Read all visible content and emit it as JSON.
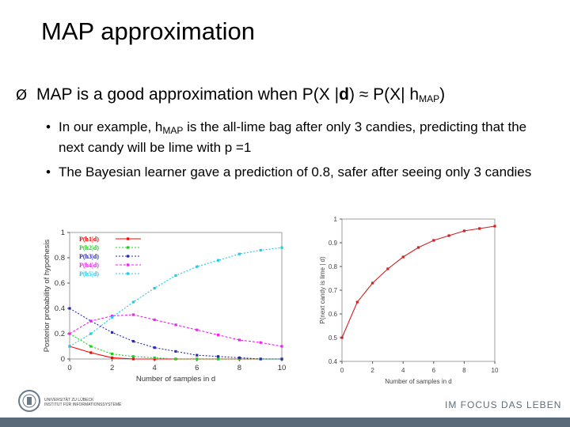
{
  "slide": {
    "title": "MAP approximation",
    "main_bullet": {
      "arrow": "Ø",
      "pre": "MAP is a good approximation when P(X |",
      "bold": "d",
      "mid": ") ≈ P(X| h",
      "sub": "MAP",
      "post": ")"
    },
    "sub_bullets": [
      {
        "dot": "•",
        "pre": "In our example, h",
        "sub": "MAP",
        "post": " is the all-lime bag after only 3 candies, predicting that the next candy will be lime with  p =1"
      },
      {
        "dot": "•",
        "text": "The Bayesian learner gave a prediction of 0.8, safer after seeing only 3 candies"
      }
    ],
    "footer": {
      "slogan": "IM FOCUS DAS LEBEN",
      "university": [
        "UNIVERSITÄT ZU LÜBECK",
        "INSTITUT FÜR INFORMATIONSSYSTEME"
      ]
    },
    "colors": {
      "footer_bar": "#5a6a78",
      "slogan": "#5d6f7d"
    }
  },
  "chart_data": [
    {
      "type": "line",
      "ylabel": "Posterior probability of hypothesis",
      "xlabel": "Number of samples in d",
      "x": [
        0,
        1,
        2,
        3,
        4,
        5,
        6,
        7,
        8,
        9,
        10
      ],
      "xticks": [
        "0",
        "2",
        "4",
        "6",
        "8",
        "10"
      ],
      "yticks": [
        "0",
        "0.2",
        "0.4",
        "0.6",
        "0.8",
        "1"
      ],
      "xlim": [
        0,
        10
      ],
      "ylim": [
        0,
        1
      ],
      "series": [
        {
          "name": "P(h1|d)",
          "color": "#ff0000",
          "values": [
            0.1,
            0.05,
            0.01,
            0.0,
            0.0,
            0.0,
            0.0,
            0.0,
            0.0,
            0.0,
            0.0
          ]
        },
        {
          "name": "P(h2|d)",
          "color": "#22cc22",
          "values": [
            0.2,
            0.1,
            0.04,
            0.02,
            0.01,
            0.0,
            0.0,
            0.0,
            0.0,
            0.0,
            0.0
          ]
        },
        {
          "name": "P(h3|d)",
          "color": "#2a2ab0",
          "values": [
            0.4,
            0.3,
            0.21,
            0.14,
            0.09,
            0.06,
            0.03,
            0.02,
            0.01,
            0.0,
            0.0
          ]
        },
        {
          "name": "P(h4|d)",
          "color": "#ee22ee",
          "values": [
            0.2,
            0.3,
            0.34,
            0.35,
            0.31,
            0.27,
            0.23,
            0.19,
            0.15,
            0.13,
            0.1
          ]
        },
        {
          "name": "P(h5|d)",
          "color": "#22c8e8",
          "values": [
            0.1,
            0.2,
            0.33,
            0.45,
            0.56,
            0.66,
            0.73,
            0.78,
            0.83,
            0.86,
            0.88
          ]
        }
      ],
      "legend_placement": "top-left"
    },
    {
      "type": "line",
      "ylabel": "P(next candy is lime | d)",
      "xlabel": "Number of samples in d",
      "x": [
        0,
        1,
        2,
        3,
        4,
        5,
        6,
        7,
        8,
        9,
        10
      ],
      "xticks": [
        "0",
        "2",
        "4",
        "6",
        "8",
        "10"
      ],
      "yticks": [
        "0.4",
        "0.5",
        "0.6",
        "0.7",
        "0.8",
        "0.9",
        "1"
      ],
      "xlim": [
        0,
        10
      ],
      "ylim": [
        0.4,
        1
      ],
      "series": [
        {
          "color": "#cc2222",
          "values": [
            0.5,
            0.65,
            0.73,
            0.79,
            0.84,
            0.88,
            0.91,
            0.93,
            0.95,
            0.96,
            0.97
          ]
        }
      ]
    }
  ]
}
